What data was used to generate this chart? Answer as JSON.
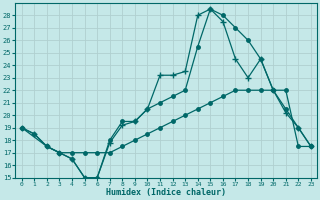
{
  "xlabel": "Humidex (Indice chaleur)",
  "bg_color": "#c5e8e8",
  "line_color": "#006868",
  "grid_color": "#b0d0d0",
  "xlim": [
    -0.5,
    23.5
  ],
  "ylim": [
    15,
    29
  ],
  "yticks": [
    15,
    16,
    17,
    18,
    19,
    20,
    21,
    22,
    23,
    24,
    25,
    26,
    27,
    28
  ],
  "xticks": [
    0,
    1,
    2,
    3,
    4,
    5,
    6,
    7,
    8,
    9,
    10,
    11,
    12,
    13,
    14,
    15,
    16,
    17,
    18,
    19,
    20,
    21,
    22,
    23
  ],
  "line1_x": [
    0,
    1,
    2,
    3,
    4,
    5,
    6,
    7,
    8,
    9,
    10,
    11,
    12,
    13,
    14,
    15,
    16,
    17,
    18,
    19,
    20,
    21,
    22,
    23
  ],
  "line1_y": [
    19,
    18.5,
    17.5,
    17,
    16.5,
    15,
    15,
    17.8,
    19.2,
    19.5,
    20.5,
    23.2,
    23.2,
    23.5,
    28,
    28.5,
    27.5,
    24.5,
    23.0,
    24.5,
    22.0,
    20.2,
    19.0,
    17.5
  ],
  "line2_x": [
    0,
    2,
    3,
    4,
    5,
    6,
    7,
    8,
    9,
    10,
    11,
    12,
    13,
    14,
    15,
    16,
    17,
    18,
    19,
    20,
    21,
    22,
    23
  ],
  "line2_y": [
    19,
    17.5,
    17,
    16.5,
    15,
    15,
    18.0,
    19.5,
    19.5,
    20.5,
    21.0,
    21.5,
    22.0,
    25.5,
    28.5,
    28.0,
    27.0,
    26.0,
    24.5,
    22.0,
    20.5,
    19.0,
    17.5
  ],
  "line3_x": [
    0,
    1,
    2,
    3,
    4,
    5,
    6,
    7,
    8,
    9,
    10,
    11,
    12,
    13,
    14,
    15,
    16,
    17,
    18,
    19,
    20,
    21,
    22,
    23
  ],
  "line3_y": [
    19,
    18.5,
    17.5,
    17,
    17,
    17,
    17,
    17,
    17.5,
    18,
    18.5,
    19,
    19.5,
    20,
    20.5,
    21,
    21.5,
    22,
    22,
    22,
    22,
    22,
    17.5,
    17.5
  ]
}
